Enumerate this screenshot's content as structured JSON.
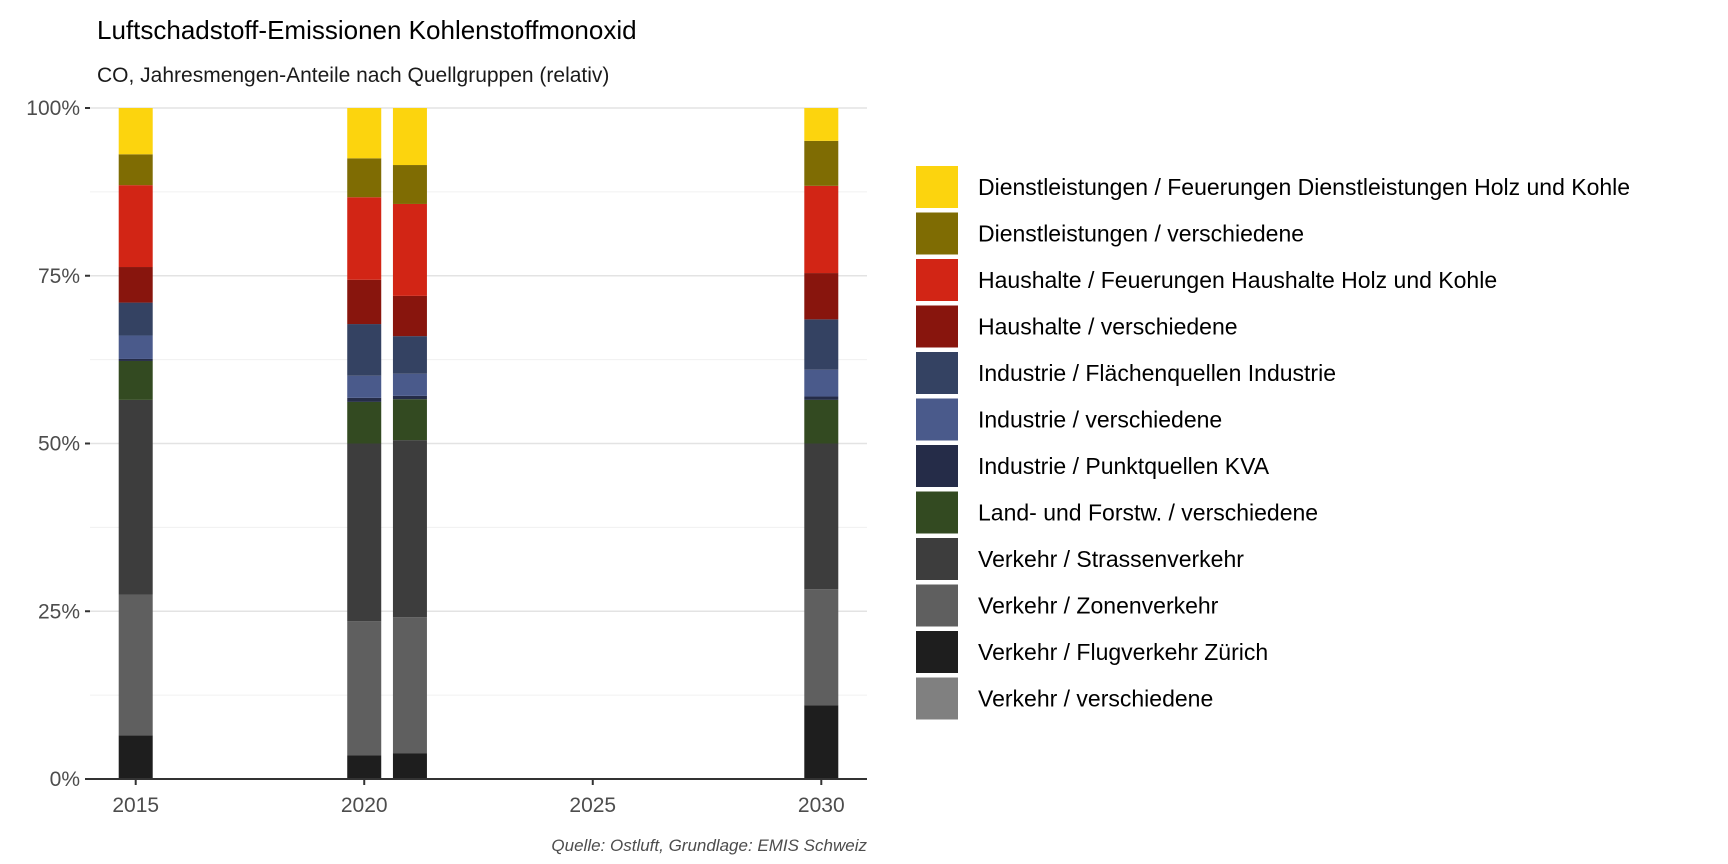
{
  "chart_data": {
    "type": "bar",
    "stacked": "percent",
    "title": "Luftschadstoff-Emissionen Kohlenstoffmonoxid",
    "subtitle": "CO, Jahresmengen-Anteile nach Quellgruppen (relativ)",
    "caption": "Quelle: Ostluft, Grundlage: EMIS Schweiz",
    "xlabel": "",
    "ylabel": "",
    "x": [
      2015,
      2020,
      2021,
      2030
    ],
    "xlim": [
      2014,
      2031
    ],
    "xticks": [
      2015,
      2020,
      2025,
      2030
    ],
    "xtick_labels": [
      "2015",
      "2020",
      "2025",
      "2030"
    ],
    "ylim": [
      0,
      100
    ],
    "yticks": [
      0,
      25,
      50,
      75,
      100
    ],
    "ytick_labels": [
      "0%",
      "25%",
      "50%",
      "75%",
      "100%"
    ],
    "grid": true,
    "legend_position": "right",
    "series": [
      {
        "name": "Verkehr / verschiedene",
        "color": "#808080",
        "values": [
          0.0,
          0.0,
          0.0,
          0.0
        ]
      },
      {
        "name": "Verkehr / Flugverkehr Zürich",
        "color": "#1e1e1e",
        "values": [
          6.5,
          3.5,
          3.8,
          11.0
        ]
      },
      {
        "name": "Verkehr / Zonenverkehr",
        "color": "#5f5f5f",
        "values": [
          21.0,
          20.0,
          20.3,
          17.3
        ]
      },
      {
        "name": "Verkehr / Strassenverkehr",
        "color": "#3d3d3d",
        "values": [
          29.0,
          26.5,
          26.4,
          21.7
        ]
      },
      {
        "name": "Land- und Forstw. / verschiedene",
        "color": "#334a21",
        "values": [
          5.8,
          6.2,
          6.1,
          6.5
        ]
      },
      {
        "name": "Industrie / Punktquellen KVA",
        "color": "#252c48",
        "values": [
          0.3,
          0.6,
          0.5,
          0.5
        ]
      },
      {
        "name": "Industrie / verschiedene",
        "color": "#4a5a8b",
        "values": [
          3.5,
          3.3,
          3.3,
          4.0
        ]
      },
      {
        "name": "Industrie / Flächenquellen Industrie",
        "color": "#344262",
        "values": [
          4.9,
          7.7,
          5.6,
          7.5
        ]
      },
      {
        "name": "Haushalte / verschiedene",
        "color": "#88150d",
        "values": [
          5.3,
          6.6,
          6.0,
          6.9
        ]
      },
      {
        "name": "Haushalte / Feuerungen Haushalte Holz und Kohle",
        "color": "#d22515",
        "values": [
          12.2,
          12.3,
          13.7,
          13.0
        ]
      },
      {
        "name": "Dienstleistungen / verschiedene",
        "color": "#7f6c03",
        "values": [
          4.6,
          5.8,
          5.8,
          6.7
        ]
      },
      {
        "name": "Dienstleistungen / Feuerungen Dienstleistungen Holz und Kohle",
        "color": "#fcd40e",
        "values": [
          6.9,
          7.5,
          8.5,
          4.9
        ]
      }
    ]
  }
}
